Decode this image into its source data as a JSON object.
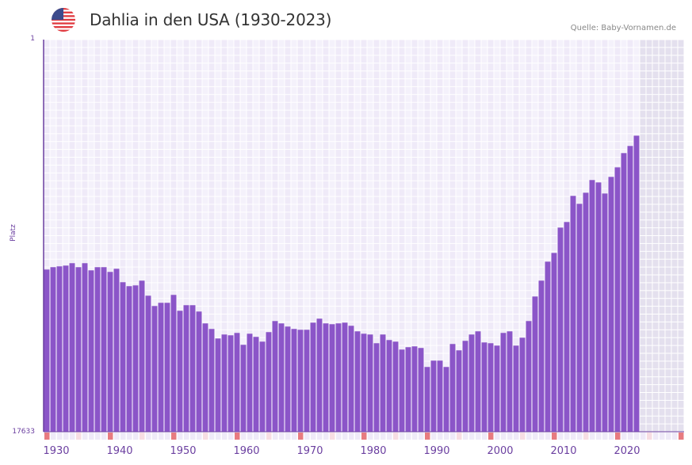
{
  "header": {
    "title": "Dahlia in den USA (1930-2023)",
    "source": "Quelle: Baby-Vornamen.de",
    "flag_icon": "us-flag-icon"
  },
  "colors": {
    "bar": "#8b55c8",
    "axis": "#6b3fa0",
    "grid_a": "#efeaf8",
    "grid_b": "#f4f1fb",
    "future": "#e4e0ee",
    "decade_marker": "#e77b80",
    "half_decade_marker": "#f7dde3",
    "minor_marker": "#efeaf8"
  },
  "chart_data": {
    "type": "bar",
    "title": "Dahlia in den USA (1930-2023)",
    "xlabel": "",
    "ylabel": "Platz",
    "ylim": [
      17633,
      1
    ],
    "y_ticks": [
      "1",
      "17633"
    ],
    "x_ticks": [
      "1930",
      "1940",
      "1950",
      "1960",
      "1970",
      "1980",
      "1990",
      "2000",
      "2010",
      "2020"
    ],
    "x_range": [
      1930,
      2030
    ],
    "grid": true,
    "categories": [
      1930,
      1931,
      1932,
      1933,
      1934,
      1935,
      1936,
      1937,
      1938,
      1939,
      1940,
      1941,
      1942,
      1943,
      1944,
      1945,
      1946,
      1947,
      1948,
      1949,
      1950,
      1951,
      1952,
      1953,
      1954,
      1955,
      1956,
      1957,
      1958,
      1959,
      1960,
      1961,
      1962,
      1963,
      1964,
      1965,
      1966,
      1967,
      1968,
      1969,
      1970,
      1971,
      1972,
      1973,
      1974,
      1975,
      1976,
      1977,
      1978,
      1979,
      1980,
      1981,
      1982,
      1983,
      1984,
      1985,
      1986,
      1987,
      1988,
      1989,
      1990,
      1991,
      1992,
      1993,
      1994,
      1995,
      1996,
      1997,
      1998,
      1999,
      2000,
      2001,
      2002,
      2003,
      2004,
      2005,
      2006,
      2007,
      2008,
      2009,
      2010,
      2011,
      2012,
      2013,
      2014,
      2015,
      2016,
      2017,
      2018,
      2019,
      2020,
      2021,
      2022,
      2023
    ],
    "values": [
      10340,
      10233,
      10197,
      10162,
      10055,
      10233,
      10055,
      10376,
      10233,
      10233,
      10447,
      10305,
      10910,
      11088,
      11053,
      10839,
      11516,
      11979,
      11836,
      11836,
      11480,
      12193,
      11943,
      11943,
      12228,
      12762,
      13012,
      13439,
      13261,
      13297,
      13190,
      13724,
      13226,
      13368,
      13582,
      13154,
      12656,
      12762,
      12904,
      13012,
      13047,
      13047,
      12727,
      12549,
      12762,
      12798,
      12762,
      12727,
      12869,
      13119,
      13226,
      13261,
      13653,
      13261,
      13511,
      13582,
      13938,
      13831,
      13795,
      13866,
      14721,
      14436,
      14436,
      14721,
      13688,
      13973,
      13546,
      13261,
      13119,
      13618,
      13653,
      13759,
      13190,
      13119,
      13759,
      13404,
      12656,
      11552,
      10839,
      9985,
      9594,
      8454,
      8204,
      7029,
      7385,
      6886,
      6316,
      6423,
      6922,
      6174,
      5746,
      5105,
      4784,
      4321
    ]
  }
}
